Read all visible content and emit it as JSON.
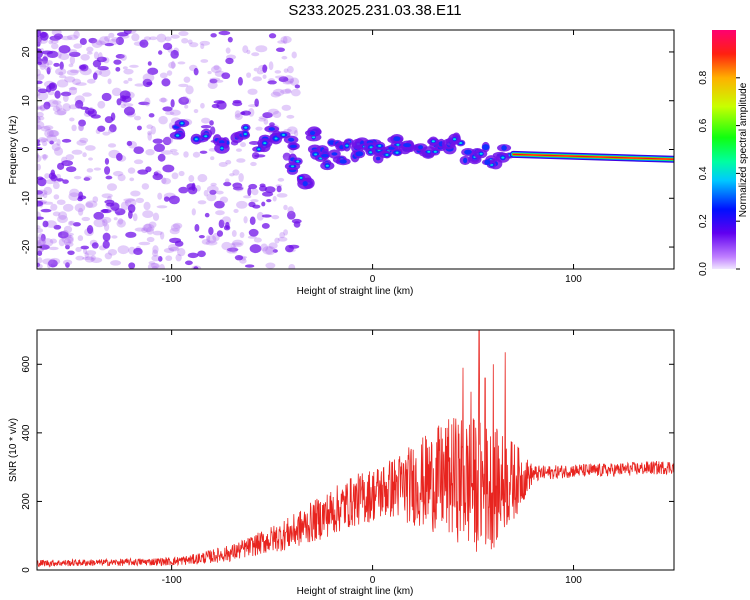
{
  "title": "S233.2025.231.03.38.E11",
  "colors": {
    "snr_line": "#e8241f",
    "blob_low": "#b070f0",
    "blob_mid": "#7010e8"
  },
  "chart_data": [
    {
      "type": "heatmap",
      "xlabel": "Height of straight line (km)",
      "ylabel": "Frequency (Hz)",
      "xlim": [
        -167,
        150
      ],
      "ylim": [
        -24.5,
        24.5
      ],
      "x_ticks": [
        -100,
        0,
        100
      ],
      "x_tick_labels": [
        "-100",
        "0",
        "100"
      ],
      "y_ticks": [
        -20,
        -10,
        0,
        10,
        20
      ],
      "y_tick_labels": [
        "-20",
        "-10",
        "0",
        "10",
        "20"
      ],
      "trace": {
        "x": [
          -95,
          -85,
          -75,
          -65,
          -55,
          -48,
          -42,
          -38,
          -34,
          -30,
          -26,
          -22,
          -18,
          -14,
          -10,
          -6,
          -2,
          2,
          6,
          10,
          15,
          20,
          25,
          30,
          36,
          42,
          48,
          54,
          60,
          66
        ],
        "y": [
          4,
          2,
          1,
          3,
          1,
          3,
          2,
          -3,
          -6,
          4,
          -1,
          -2,
          0,
          -1,
          1,
          0,
          1,
          -1,
          0,
          1,
          0,
          1,
          0,
          1,
          0,
          1,
          -1,
          0,
          -2,
          -1
        ]
      },
      "strong_line": {
        "x": [
          70,
          150
        ],
        "y": [
          -1,
          -2
        ]
      },
      "colorbar": {
        "label": "Normalized spectral amplitude",
        "ticks": [
          0.0,
          0.2,
          0.4,
          0.6,
          0.8
        ],
        "tick_labels": [
          "0.0",
          "0.2",
          "0.4",
          "0.6",
          "0.8"
        ],
        "range": [
          0,
          1
        ]
      }
    },
    {
      "type": "line",
      "xlabel": "Height of straight line (km)",
      "ylabel": "SNR (10 * v/v)",
      "xlim": [
        -167,
        150
      ],
      "ylim": [
        0,
        700
      ],
      "x_ticks": [
        -100,
        0,
        100
      ],
      "x_tick_labels": [
        "-100",
        "0",
        "100"
      ],
      "y_ticks": [
        0,
        200,
        400,
        600
      ],
      "y_tick_labels": [
        "0",
        "200",
        "400",
        "600"
      ],
      "envelope": {
        "x": [
          -167,
          -130,
          -100,
          -90,
          -80,
          -70,
          -60,
          -50,
          -40,
          -30,
          -20,
          -10,
          0,
          10,
          20,
          30,
          40,
          50,
          60,
          70,
          80,
          90,
          100,
          110,
          120,
          130,
          140,
          150
        ],
        "mean": [
          20,
          22,
          25,
          30,
          40,
          50,
          70,
          90,
          110,
          140,
          170,
          200,
          220,
          240,
          250,
          260,
          270,
          250,
          240,
          260,
          280,
          285,
          290,
          290,
          292,
          295,
          298,
          300
        ],
        "amp": [
          10,
          10,
          12,
          15,
          20,
          25,
          30,
          40,
          50,
          60,
          70,
          75,
          80,
          90,
          120,
          150,
          180,
          200,
          180,
          120,
          25,
          20,
          20,
          20,
          20,
          20,
          20,
          20
        ]
      },
      "spikes": [
        {
          "x": 45,
          "y": 590
        },
        {
          "x": 53,
          "y": 700
        },
        {
          "x": 56,
          "y": 560
        },
        {
          "x": 60,
          "y": 600
        },
        {
          "x": 66,
          "y": 635
        },
        {
          "x": 49,
          "y": 520
        }
      ]
    }
  ]
}
